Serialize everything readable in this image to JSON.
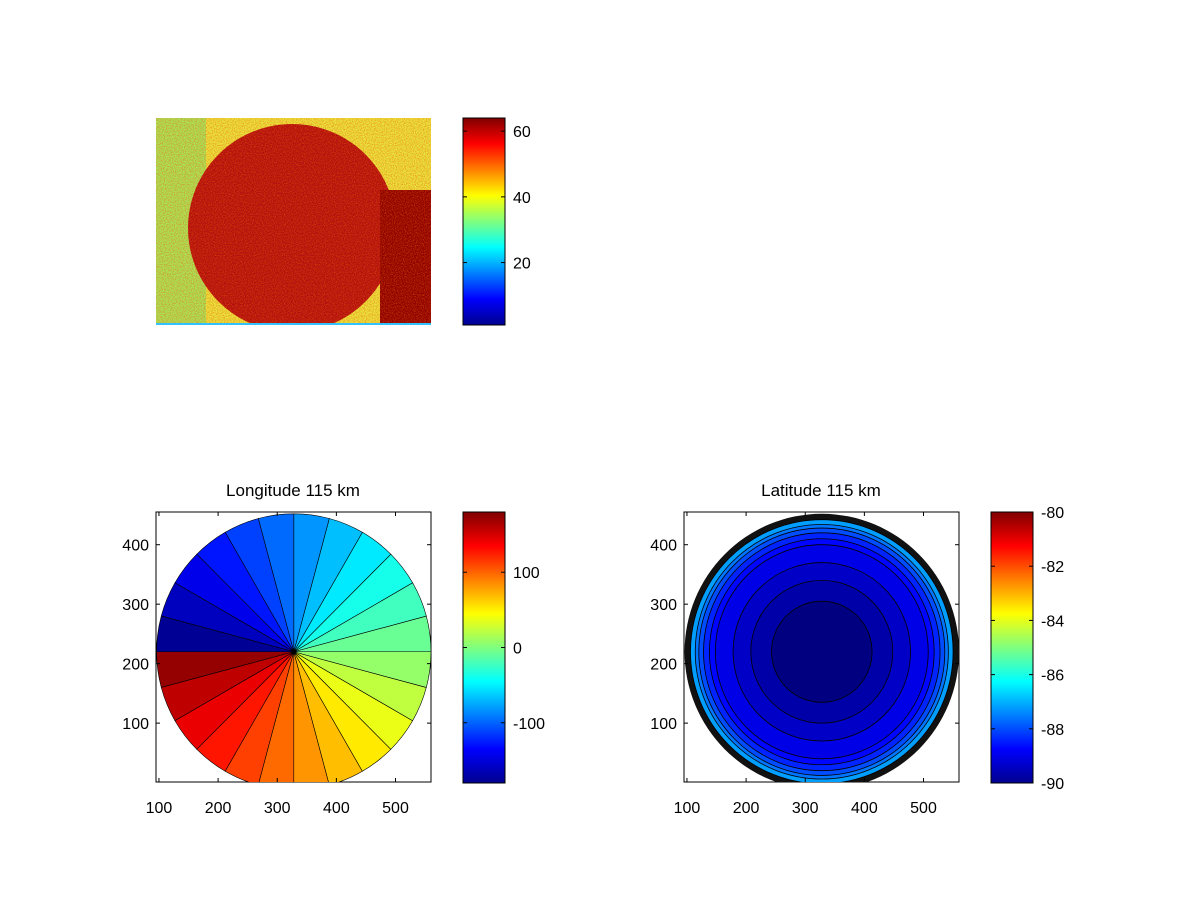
{
  "chart_data": [
    {
      "type": "heatmap",
      "title": "",
      "xlabel": "",
      "ylabel": "",
      "axes_visible": false,
      "description_values": {
        "background_value": 45,
        "disk_value": 62,
        "clim": [
          1,
          64
        ]
      },
      "colorbar": {
        "colormap": "jet",
        "clim": [
          1,
          64
        ],
        "ticks": [
          20,
          40,
          60
        ]
      }
    },
    {
      "type": "heatmap",
      "title": "Longitude 115 km",
      "xlim": [
        95,
        560
      ],
      "ylim": [
        1,
        455
      ],
      "xticks": [
        100,
        200,
        300,
        400,
        500
      ],
      "yticks": [
        100,
        200,
        300,
        400
      ],
      "center": [
        328,
        220
      ],
      "radius": 232,
      "sectors": 24,
      "values_range": [
        -180,
        180
      ],
      "colorbar": {
        "colormap": "jet",
        "clim": [
          -180,
          180
        ],
        "ticks": [
          -100,
          0,
          100
        ]
      }
    },
    {
      "type": "heatmap",
      "title": "Latitude 115 km",
      "xlim": [
        95,
        560
      ],
      "ylim": [
        1,
        455
      ],
      "xticks": [
        100,
        200,
        300,
        400,
        500
      ],
      "yticks": [
        100,
        200,
        300,
        400
      ],
      "center": [
        328,
        220
      ],
      "contour_levels": [
        -90,
        -89.5,
        -89,
        -88.5,
        -88,
        -87.5,
        -87,
        -86.5,
        -86
      ],
      "colorbar": {
        "colormap": "jet",
        "clim": [
          -90,
          -80
        ],
        "ticks": [
          -90,
          -88,
          -86,
          -84,
          -82,
          -80
        ]
      }
    }
  ]
}
